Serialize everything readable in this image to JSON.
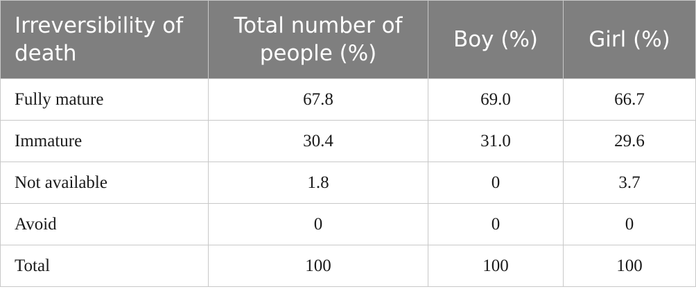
{
  "table": {
    "header": [
      "Irreversibility of death",
      "Total number of people (%)",
      "Boy (%)",
      "Girl (%)"
    ],
    "rows": [
      [
        "Fully mature",
        "67.8",
        "69.0",
        "66.7"
      ],
      [
        "Immature",
        "30.4",
        "31.0",
        "29.6"
      ],
      [
        "Not available",
        "1.8",
        "0",
        "3.7"
      ],
      [
        "Avoid",
        "0",
        "0",
        "0"
      ],
      [
        "Total",
        "100",
        "100",
        "100"
      ]
    ]
  }
}
